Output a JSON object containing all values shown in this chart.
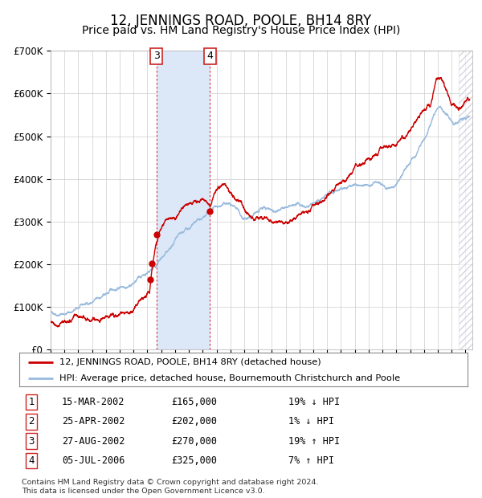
{
  "title": "12, JENNINGS ROAD, POOLE, BH14 8RY",
  "subtitle": "Price paid vs. HM Land Registry's House Price Index (HPI)",
  "ylim": [
    0,
    700000
  ],
  "yticks": [
    0,
    100000,
    200000,
    300000,
    400000,
    500000,
    600000,
    700000
  ],
  "ytick_labels": [
    "£0",
    "£100K",
    "£200K",
    "£300K",
    "£400K",
    "£500K",
    "£600K",
    "£700K"
  ],
  "xlim_start": 1995.0,
  "xlim_end": 2025.5,
  "background_color": "#ffffff",
  "plot_bg_color": "#ffffff",
  "grid_color": "#cccccc",
  "hpi_line_color": "#99bbdd",
  "price_line_color": "#cc0000",
  "sale_marker_color": "#cc0000",
  "highlight_bg": "#dce8f8",
  "dashed_line_color": "#dd4444",
  "title_fontsize": 12,
  "subtitle_fontsize": 10,
  "sales": [
    {
      "num": 1,
      "date_label": "15-MAR-2002",
      "price": 165000,
      "pct": "19%",
      "dir": "↓",
      "date_x": 2002.2
    },
    {
      "num": 2,
      "date_label": "25-APR-2002",
      "price": 202000,
      "pct": "1%",
      "dir": "↓",
      "date_x": 2002.32
    },
    {
      "num": 3,
      "date_label": "27-AUG-2002",
      "price": 270000,
      "pct": "19%",
      "dir": "↑",
      "date_x": 2002.65
    },
    {
      "num": 4,
      "date_label": "05-JUL-2006",
      "price": 325000,
      "pct": "7%",
      "dir": "↑",
      "date_x": 2006.51
    }
  ],
  "table_rows": [
    {
      "num": 1,
      "date": "15-MAR-2002",
      "price": "£165,000",
      "pct": "19% ↓ HPI"
    },
    {
      "num": 2,
      "date": "25-APR-2002",
      "price": "£202,000",
      "pct": "1% ↓ HPI"
    },
    {
      "num": 3,
      "date": "27-AUG-2002",
      "price": "£270,000",
      "pct": "19% ↑ HPI"
    },
    {
      "num": 4,
      "date": "05-JUL-2006",
      "price": "£325,000",
      "pct": "7% ↑ HPI"
    }
  ],
  "legend_line1": "12, JENNINGS ROAD, POOLE, BH14 8RY (detached house)",
  "legend_line2": "HPI: Average price, detached house, Bournemouth Christchurch and Poole",
  "footnote": "Contains HM Land Registry data © Crown copyright and database right 2024.\nThis data is licensed under the Open Government Licence v3.0.",
  "hatch_start": 2024.5
}
